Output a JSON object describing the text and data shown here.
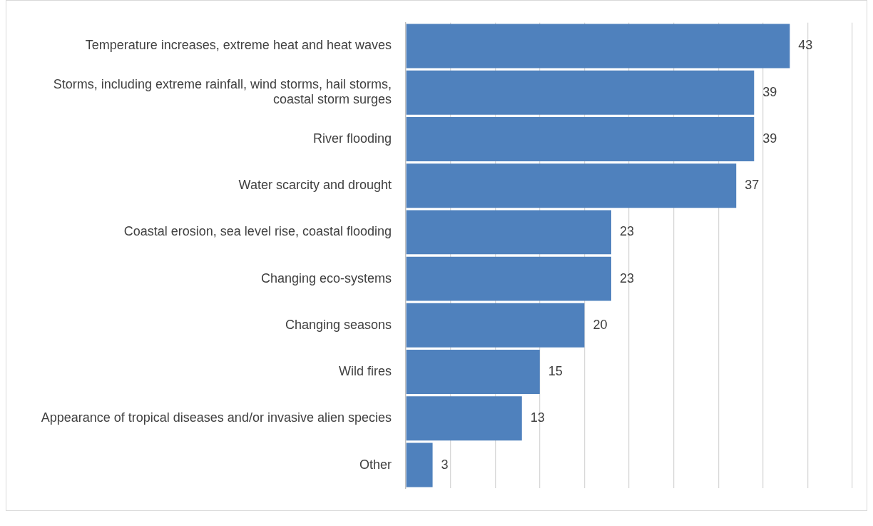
{
  "chart_data": {
    "type": "bar",
    "orientation": "horizontal",
    "categories": [
      "Temperature increases, extreme heat and heat waves",
      "Storms, including extreme rainfall, wind storms, hail storms, coastal storm surges",
      "River flooding",
      "Water scarcity and drought",
      "Coastal erosion, sea level rise, coastal flooding",
      "Changing eco-systems",
      "Changing seasons",
      "Wild fires",
      "Appearance of tropical diseases and/or invasive alien species",
      "Other"
    ],
    "values": [
      43,
      39,
      39,
      37,
      23,
      23,
      20,
      15,
      13,
      3
    ],
    "color": "#4f81bd",
    "xlim": [
      0,
      50
    ],
    "xticks": [
      {
        "value": 0,
        "label": null
      },
      {
        "value": 5,
        "label": null
      },
      {
        "value": 10,
        "label": null
      },
      {
        "value": 15,
        "label": null
      },
      {
        "value": 20,
        "label": null
      },
      {
        "value": 25,
        "label": null
      },
      {
        "value": 30,
        "label": null
      },
      {
        "value": 35,
        "label": null
      },
      {
        "value": 40,
        "label": null
      },
      {
        "value": 45,
        "label": null
      },
      {
        "value": 50,
        "label": null
      }
    ],
    "grid": "x",
    "tick_labels": "y",
    "data_labels": true,
    "legend": false
  }
}
